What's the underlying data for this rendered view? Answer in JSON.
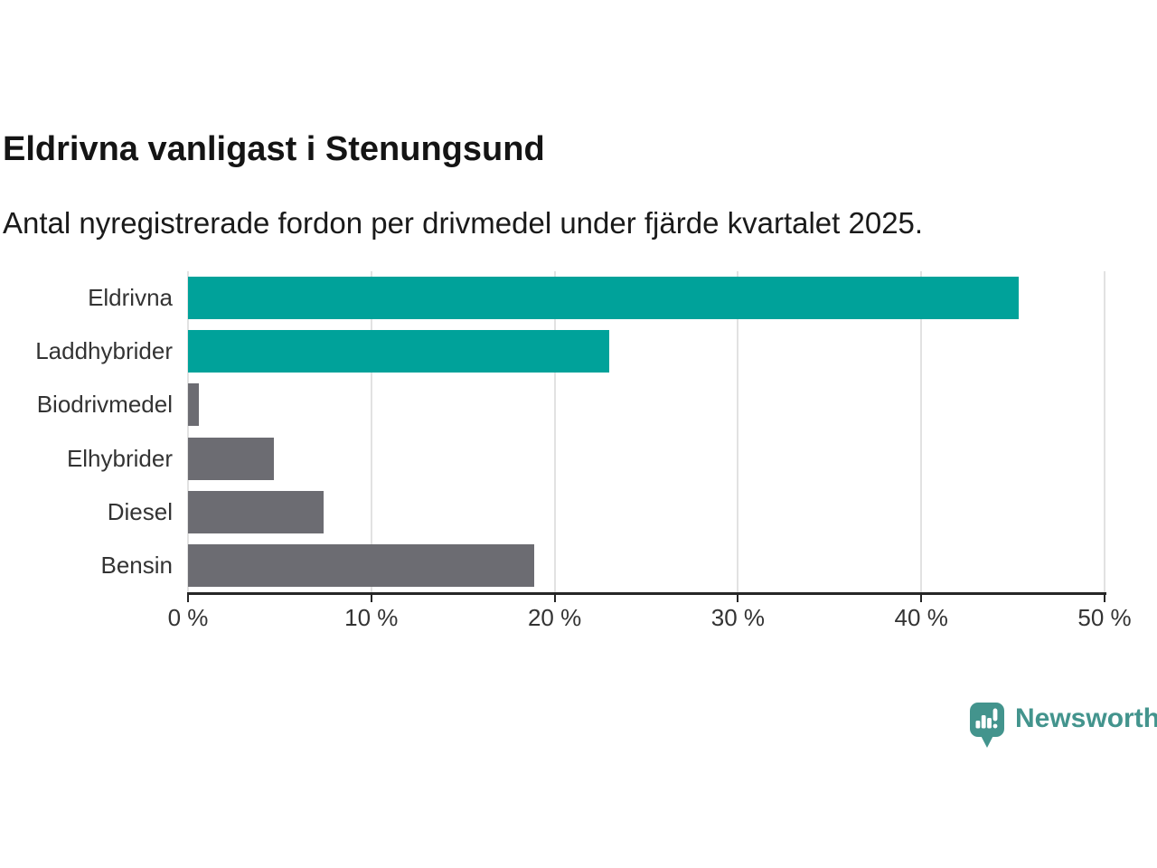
{
  "header": {
    "title": "Eldrivna vanligast i Stenungsund",
    "subtitle": "Antal nyregistrerade fordon per drivmedel under fjärde kvartalet 2025."
  },
  "chart_data": {
    "type": "bar",
    "orientation": "horizontal",
    "title": "Eldrivna vanligast i Stenungsund",
    "xlabel": "",
    "ylabel": "",
    "unit": "%",
    "categories": [
      "Eldrivna",
      "Laddhybrider",
      "Biodrivmedel",
      "Elhybrider",
      "Diesel",
      "Bensin"
    ],
    "values": [
      45.3,
      23.0,
      0.6,
      4.7,
      7.4,
      18.9
    ],
    "bar_colors": [
      "#00A29A",
      "#00A29A",
      "#6C6C72",
      "#6C6C72",
      "#6C6C72",
      "#6C6C72"
    ],
    "highlight_color": "#00A29A",
    "default_color": "#6C6C72",
    "xlim": [
      0,
      50
    ],
    "x_ticks": [
      0,
      10,
      20,
      30,
      40,
      50
    ],
    "x_tick_labels": [
      "0 %",
      "10 %",
      "20 %",
      "30 %",
      "40 %",
      "50 %"
    ],
    "grid": true,
    "gridline_color": "#e2e2e2",
    "axis_color": "#262626",
    "legend": "none"
  },
  "footer": {
    "brand": "Newsworthy",
    "brand_color": "#43948D"
  }
}
